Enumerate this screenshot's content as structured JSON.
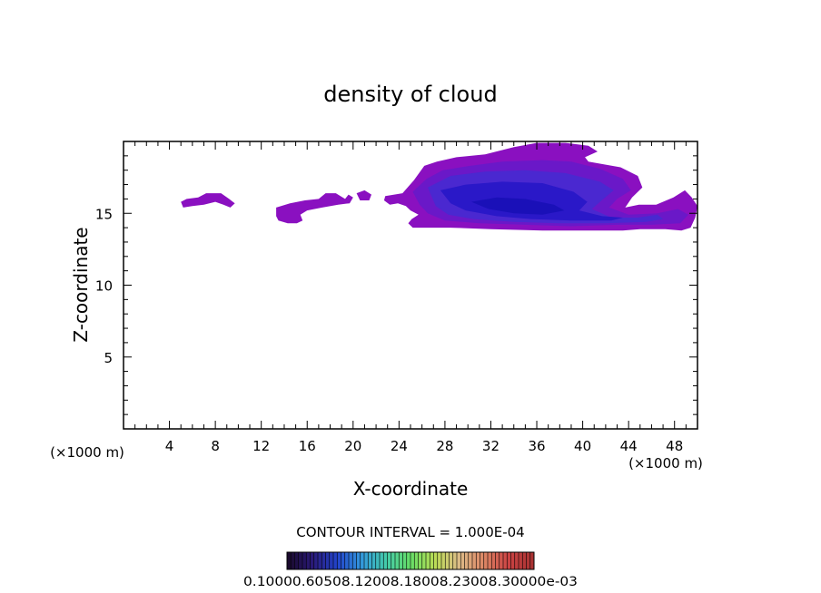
{
  "chart_data": {
    "type": "contour",
    "title": "density of cloud",
    "xlabel": "X-coordinate",
    "ylabel": "Z-coordinate",
    "x_unit": "(×1000 m)",
    "x_unit_right": "(×1000 m)",
    "xlim": [
      0,
      50
    ],
    "ylim": [
      0,
      20
    ],
    "x_ticks": [
      4,
      8,
      12,
      16,
      20,
      24,
      28,
      32,
      36,
      40,
      44,
      48
    ],
    "x_minor_step": 1,
    "y_ticks": [
      5,
      10,
      15
    ],
    "y_minor_step": 1,
    "contour_interval_text": "CONTOUR INTERVAL = 1.000E-04",
    "colorbar_labels": "0.10000.60508.12008.18008.23008.30000e-03",
    "colorbar_colors": [
      "#1a0a2e",
      "#2a1a7a",
      "#2244cc",
      "#3399dd",
      "#44ccaa",
      "#66dd66",
      "#bbdd55",
      "#ddbb88",
      "#dd8866",
      "#cc4444",
      "#aa3333"
    ],
    "fill_colors": {
      "outer": "#8a10c0",
      "mid": "#6a18c8",
      "inner": "#4a28d0",
      "core": "#2a18c8",
      "deep": "#1a10b8"
    },
    "regions": [
      {
        "level": "outer",
        "points": [
          [
            5.0,
            15.8
          ],
          [
            5.5,
            16.0
          ],
          [
            6.5,
            16.1
          ],
          [
            7.2,
            16.4
          ],
          [
            8.5,
            16.4
          ],
          [
            9.2,
            16.0
          ],
          [
            9.7,
            15.7
          ],
          [
            9.3,
            15.4
          ],
          [
            8.7,
            15.6
          ],
          [
            8.0,
            15.8
          ],
          [
            7.0,
            15.6
          ],
          [
            6.0,
            15.5
          ],
          [
            5.2,
            15.4
          ]
        ]
      },
      {
        "level": "outer",
        "points": [
          [
            13.3,
            15.4
          ],
          [
            14.5,
            15.7
          ],
          [
            15.8,
            15.9
          ],
          [
            17.0,
            16.0
          ],
          [
            17.6,
            16.4
          ],
          [
            18.5,
            16.4
          ],
          [
            18.9,
            16.2
          ],
          [
            19.3,
            16.0
          ],
          [
            19.6,
            16.3
          ],
          [
            20.0,
            16.1
          ],
          [
            19.7,
            15.7
          ],
          [
            18.7,
            15.6
          ],
          [
            17.3,
            15.4
          ],
          [
            16.0,
            15.2
          ],
          [
            15.4,
            14.9
          ],
          [
            15.6,
            14.5
          ],
          [
            15.1,
            14.3
          ],
          [
            14.3,
            14.3
          ],
          [
            13.5,
            14.5
          ],
          [
            13.3,
            14.8
          ]
        ]
      },
      {
        "level": "outer",
        "points": [
          [
            20.3,
            16.4
          ],
          [
            21.0,
            16.6
          ],
          [
            21.6,
            16.3
          ],
          [
            21.4,
            15.9
          ],
          [
            20.6,
            15.9
          ]
        ]
      },
      {
        "level": "outer",
        "points": [
          [
            22.8,
            16.2
          ],
          [
            24.3,
            16.4
          ],
          [
            25.3,
            17.3
          ],
          [
            26.2,
            18.3
          ],
          [
            27.3,
            18.6
          ],
          [
            29.0,
            18.9
          ],
          [
            31.5,
            19.1
          ],
          [
            34.0,
            19.6
          ],
          [
            36.0,
            19.9
          ],
          [
            38.5,
            19.9
          ],
          [
            40.5,
            19.7
          ],
          [
            41.3,
            19.3
          ],
          [
            40.2,
            18.9
          ],
          [
            40.5,
            18.6
          ],
          [
            43.3,
            18.2
          ],
          [
            44.8,
            17.6
          ],
          [
            45.2,
            16.8
          ],
          [
            44.3,
            16.1
          ],
          [
            43.7,
            15.4
          ],
          [
            44.9,
            15.6
          ],
          [
            46.4,
            15.6
          ],
          [
            47.9,
            16.1
          ],
          [
            48.9,
            16.6
          ],
          [
            49.5,
            16.1
          ],
          [
            50.0,
            15.5
          ],
          [
            49.8,
            14.7
          ],
          [
            49.4,
            14.0
          ],
          [
            48.6,
            13.8
          ],
          [
            47.2,
            13.9
          ],
          [
            45.0,
            13.9
          ],
          [
            43.5,
            13.8
          ],
          [
            40.0,
            13.8
          ],
          [
            36.5,
            13.8
          ],
          [
            32.0,
            13.9
          ],
          [
            28.5,
            14.0
          ],
          [
            26.3,
            14.0
          ],
          [
            25.2,
            14.0
          ],
          [
            24.8,
            14.3
          ],
          [
            25.1,
            14.6
          ],
          [
            25.7,
            14.9
          ],
          [
            25.0,
            15.2
          ],
          [
            24.6,
            15.5
          ],
          [
            23.9,
            15.7
          ],
          [
            23.2,
            15.6
          ],
          [
            22.7,
            15.9
          ]
        ]
      },
      {
        "level": "mid",
        "points": [
          [
            25.2,
            16.5
          ],
          [
            26.4,
            17.4
          ],
          [
            27.8,
            18.0
          ],
          [
            30.2,
            18.3
          ],
          [
            33.0,
            18.6
          ],
          [
            36.5,
            18.7
          ],
          [
            39.0,
            18.6
          ],
          [
            41.5,
            18.1
          ],
          [
            43.5,
            17.4
          ],
          [
            44.2,
            16.6
          ],
          [
            43.0,
            16.0
          ],
          [
            42.3,
            15.4
          ],
          [
            44.0,
            14.9
          ],
          [
            46.5,
            15.0
          ],
          [
            48.3,
            15.3
          ],
          [
            49.2,
            14.9
          ],
          [
            48.5,
            14.3
          ],
          [
            46.0,
            14.2
          ],
          [
            43.0,
            14.2
          ],
          [
            39.0,
            14.1
          ],
          [
            35.0,
            14.2
          ],
          [
            31.0,
            14.3
          ],
          [
            28.0,
            14.5
          ],
          [
            26.5,
            15.0
          ],
          [
            25.8,
            15.6
          ]
        ]
      },
      {
        "level": "inner",
        "points": [
          [
            26.5,
            16.8
          ],
          [
            28.5,
            17.6
          ],
          [
            31.5,
            17.9
          ],
          [
            35.0,
            18.0
          ],
          [
            38.5,
            17.8
          ],
          [
            41.5,
            17.2
          ],
          [
            42.7,
            16.6
          ],
          [
            41.8,
            16.0
          ],
          [
            40.8,
            15.3
          ],
          [
            42.5,
            14.7
          ],
          [
            44.8,
            14.7
          ],
          [
            46.5,
            14.9
          ],
          [
            47.0,
            14.6
          ],
          [
            45.5,
            14.4
          ],
          [
            42.0,
            14.3
          ],
          [
            38.0,
            14.3
          ],
          [
            34.0,
            14.4
          ],
          [
            30.5,
            14.6
          ],
          [
            28.3,
            14.9
          ],
          [
            27.2,
            15.5
          ]
        ]
      },
      {
        "level": "core",
        "points": [
          [
            27.6,
            16.6
          ],
          [
            29.8,
            17.0
          ],
          [
            33.0,
            17.2
          ],
          [
            36.5,
            17.1
          ],
          [
            39.2,
            16.5
          ],
          [
            40.4,
            15.8
          ],
          [
            39.7,
            15.2
          ],
          [
            41.7,
            14.8
          ],
          [
            43.5,
            14.7
          ],
          [
            42.5,
            14.5
          ],
          [
            39.0,
            14.5
          ],
          [
            35.5,
            14.6
          ],
          [
            32.5,
            14.8
          ],
          [
            29.8,
            15.2
          ],
          [
            28.5,
            15.7
          ]
        ]
      },
      {
        "level": "deep",
        "points": [
          [
            30.3,
            15.8
          ],
          [
            32.5,
            16.1
          ],
          [
            35.0,
            16.0
          ],
          [
            37.5,
            15.6
          ],
          [
            38.4,
            15.2
          ],
          [
            36.5,
            14.9
          ],
          [
            34.0,
            15.0
          ],
          [
            31.8,
            15.3
          ]
        ]
      }
    ]
  }
}
